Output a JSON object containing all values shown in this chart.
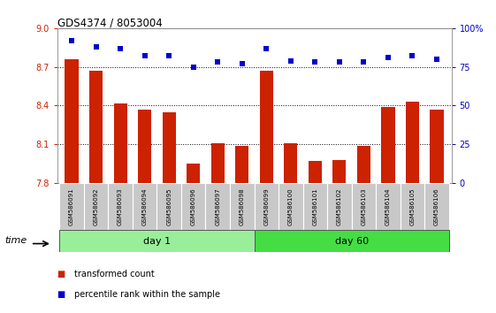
{
  "title": "GDS4374 / 8053004",
  "samples": [
    "GSM586091",
    "GSM586092",
    "GSM586093",
    "GSM586094",
    "GSM586095",
    "GSM586096",
    "GSM586097",
    "GSM586098",
    "GSM586099",
    "GSM586100",
    "GSM586101",
    "GSM586102",
    "GSM586103",
    "GSM586104",
    "GSM586105",
    "GSM586106"
  ],
  "bar_values": [
    8.76,
    8.67,
    8.42,
    8.37,
    8.35,
    7.95,
    8.11,
    8.09,
    8.67,
    8.11,
    7.97,
    7.98,
    8.09,
    8.39,
    8.43,
    8.37
  ],
  "dot_values": [
    92,
    88,
    87,
    82,
    82,
    75,
    78,
    77,
    87,
    79,
    78,
    78,
    78,
    81,
    82,
    80
  ],
  "groups": [
    {
      "label": "day 1",
      "start": 0,
      "end": 8
    },
    {
      "label": "day 60",
      "start": 8,
      "end": 16
    }
  ],
  "ylim_left": [
    7.8,
    9.0
  ],
  "ylim_right": [
    0,
    100
  ],
  "yticks_left": [
    7.8,
    8.1,
    8.4,
    8.7,
    9.0
  ],
  "yticks_right": [
    0,
    25,
    50,
    75,
    100
  ],
  "ytick_labels_right": [
    "0",
    "25",
    "50",
    "75",
    "100%"
  ],
  "bar_color": "#cc2200",
  "dot_color": "#0000cc",
  "grid_color": "#000000",
  "tick_label_bg": "#c8c8c8",
  "group_bg_light": "#99ee99",
  "group_bg_dark": "#44dd44",
  "legend_items": [
    {
      "color": "#cc2200",
      "label": "transformed count"
    },
    {
      "color": "#0000cc",
      "label": "percentile rank within the sample"
    }
  ],
  "time_label": "time",
  "bar_width": 0.55
}
